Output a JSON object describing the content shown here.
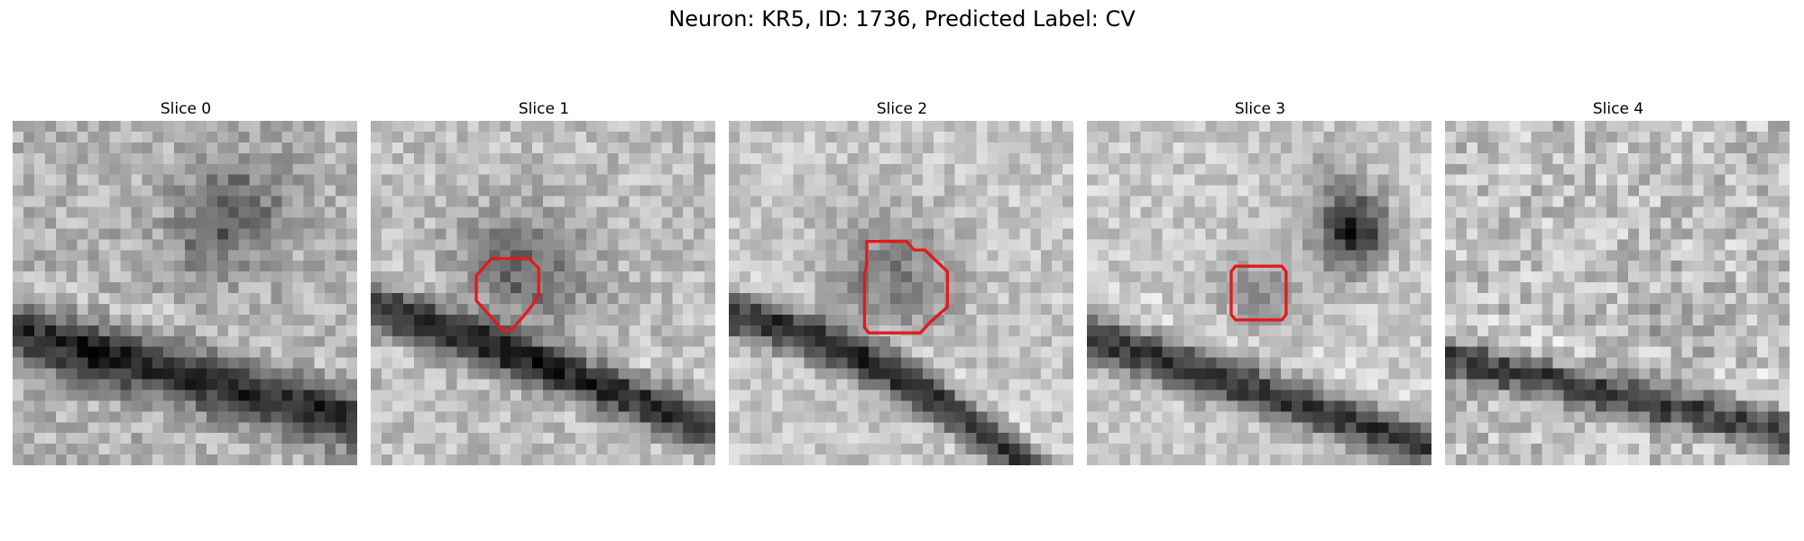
{
  "figure": {
    "title": "Neuron: KR5, ID: 1736, Predicted Label: CV"
  },
  "panels": [
    {
      "title": "Slice 0"
    },
    {
      "title": "Slice 1"
    },
    {
      "title": "Slice 2"
    },
    {
      "title": "Slice 3"
    },
    {
      "title": "Slice 4"
    }
  ],
  "colors": {
    "contour": "#e31a1c",
    "background": "#ffffff",
    "colormap": "grayscale"
  },
  "image_grid": "32x32 grayscale micrographs",
  "has_contour": [
    false,
    true,
    true,
    true,
    false
  ]
}
